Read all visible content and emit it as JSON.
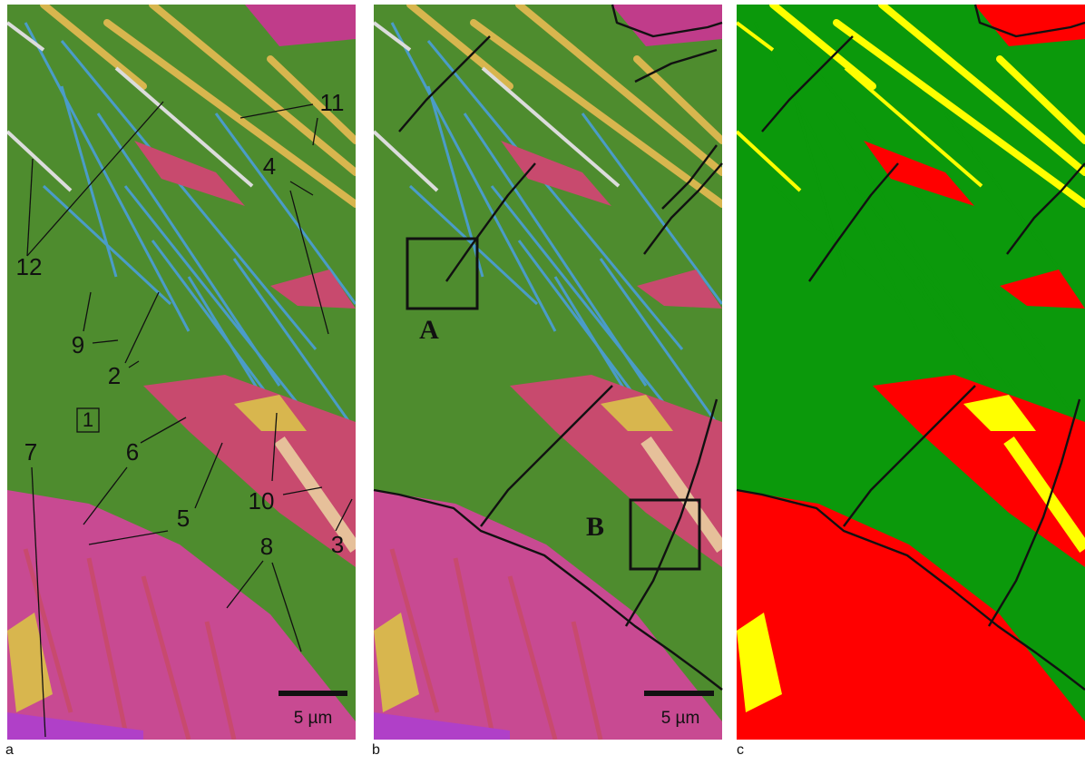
{
  "panels": [
    {
      "label": "a",
      "annotations": [
        "12",
        "11",
        "4",
        "9",
        "2",
        "1",
        "6",
        "5",
        "10",
        "7",
        "8",
        "3"
      ],
      "scale_bar": "5 µm"
    },
    {
      "label": "b",
      "regions": [
        "A",
        "B"
      ],
      "scale_bar": "5 µm"
    },
    {
      "label": "c"
    }
  ]
}
